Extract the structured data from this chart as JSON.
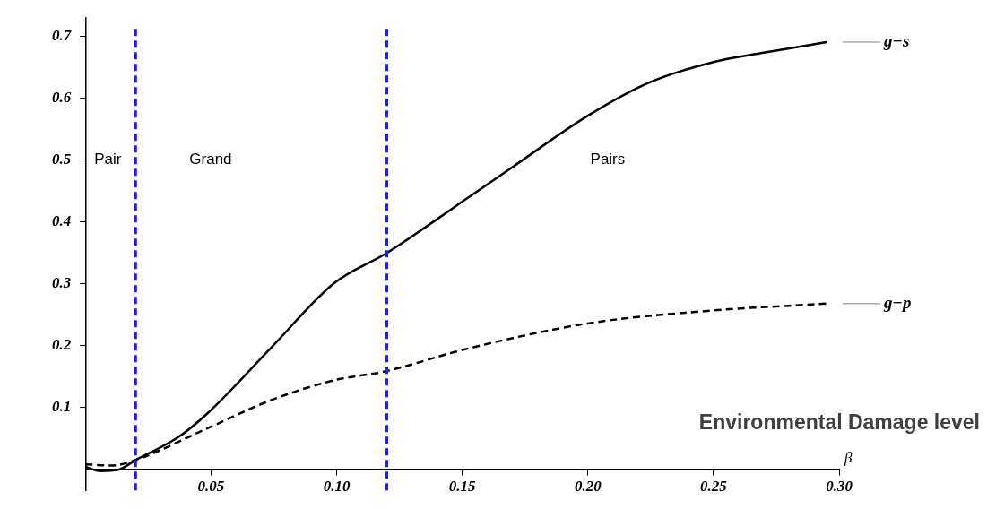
{
  "chart_data": {
    "type": "line",
    "xlabel": "β",
    "annotations": [
      "Pair",
      "Grand",
      "Pairs",
      "Environmental Damage level"
    ],
    "xlim": [
      0,
      0.3
    ],
    "ylim": [
      -0.035,
      0.73
    ],
    "xticks": [
      {
        "value": 0.05,
        "label": "0.05"
      },
      {
        "value": 0.1,
        "label": "0.10"
      },
      {
        "value": 0.15,
        "label": "0.15"
      },
      {
        "value": 0.2,
        "label": "0.20"
      },
      {
        "value": 0.25,
        "label": "0.25"
      },
      {
        "value": 0.3,
        "label": "0.30"
      }
    ],
    "yticks": [
      0.1,
      0.2,
      0.3,
      0.4,
      0.5,
      0.6,
      0.7
    ],
    "ref_lines": [
      {
        "axis": "x",
        "value": 0.02,
        "color": "#1a1aff",
        "line_style": "dashed"
      },
      {
        "axis": "x",
        "value": 0.12,
        "color": "#1a1aff",
        "line_style": "dashed"
      }
    ],
    "marker": "none",
    "series": [
      {
        "name": "g−s",
        "color": "#000000",
        "line_style": "solid",
        "x": [
          0,
          0.006,
          0.013,
          0.02,
          0.037,
          0.049,
          0.074,
          0.099,
          0.12,
          0.15,
          0.17,
          0.2,
          0.224,
          0.25,
          0.27,
          0.295
        ],
        "values": [
          0.004,
          -0.003,
          -0.001,
          0.015,
          0.052,
          0.092,
          0.197,
          0.301,
          0.35,
          0.433,
          0.489,
          0.572,
          0.625,
          0.659,
          0.674,
          0.691
        ]
      },
      {
        "name": "g−p",
        "color": "#000000",
        "line_style": "dashed",
        "x": [
          0,
          0.0104,
          0.02,
          0.049,
          0.074,
          0.099,
          0.12,
          0.15,
          0.2,
          0.25,
          0.295
        ],
        "values": [
          0.008,
          0.006,
          0.015,
          0.067,
          0.112,
          0.144,
          0.159,
          0.193,
          0.236,
          0.257,
          0.268
        ]
      }
    ]
  }
}
